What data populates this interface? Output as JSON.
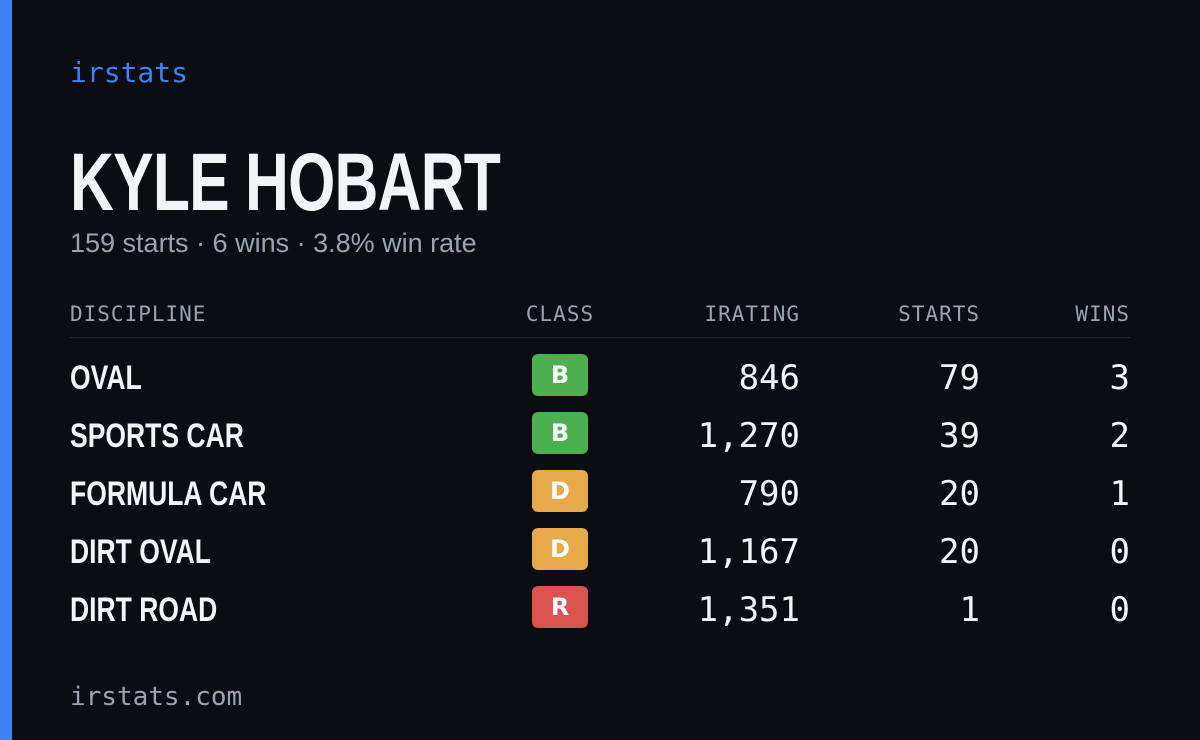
{
  "brand": "irstats",
  "driver": {
    "name": "KYLE HOBART",
    "summary": "159 starts · 6 wins · 3.8% win rate"
  },
  "table": {
    "headers": [
      "DISCIPLINE",
      "CLASS",
      "IRATING",
      "STARTS",
      "WINS"
    ],
    "rows": [
      [
        "OVAL",
        "B",
        "846",
        "79",
        "3"
      ],
      [
        "SPORTS CAR",
        "B",
        "1,270",
        "39",
        "2"
      ],
      [
        "FORMULA CAR",
        "D",
        "790",
        "20",
        "1"
      ],
      [
        "DIRT OVAL",
        "D",
        "1,167",
        "20",
        "0"
      ],
      [
        "DIRT ROAD",
        "R",
        "1,351",
        "1",
        "0"
      ]
    ]
  },
  "footer": "irstats.com"
}
